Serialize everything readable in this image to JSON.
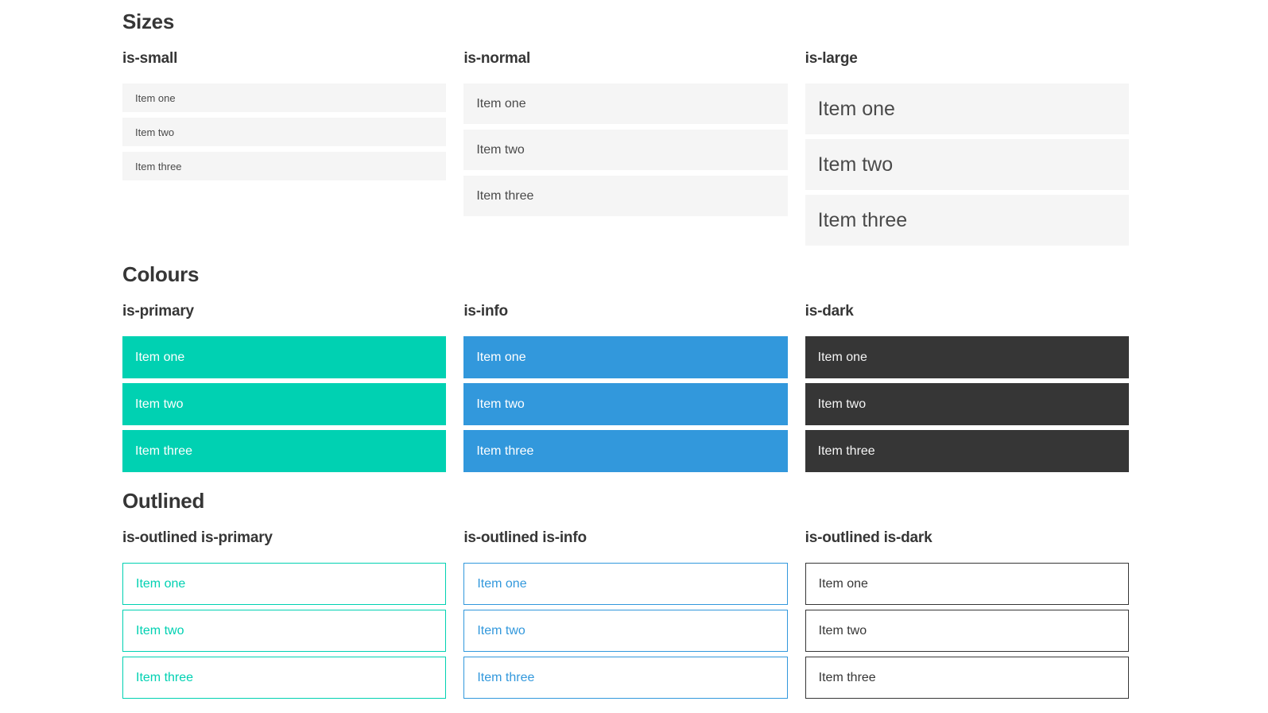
{
  "colors": {
    "page-bg": "#ffffff",
    "heading": "#363636",
    "item-bg": "#f5f5f5",
    "item-text": "#4a4a4a",
    "primary": "#00d1b2",
    "info": "#3298dc",
    "dark": "#363636",
    "dark-item-text": "#f5f5f5",
    "on-color-text": "#ffffff"
  },
  "sections": [
    {
      "title": "Sizes",
      "groups": [
        {
          "heading": "is-small",
          "items": [
            "Item one",
            "Item two",
            "Item three"
          ]
        },
        {
          "heading": "is-normal",
          "items": [
            "Item one",
            "Item two",
            "Item three"
          ]
        },
        {
          "heading": "is-large",
          "items": [
            "Item one",
            "Item two",
            "Item three"
          ]
        }
      ]
    },
    {
      "title": "Colours",
      "groups": [
        {
          "heading": "is-primary",
          "items": [
            "Item one",
            "Item two",
            "Item three"
          ]
        },
        {
          "heading": "is-info",
          "items": [
            "Item one",
            "Item two",
            "Item three"
          ]
        },
        {
          "heading": "is-dark",
          "items": [
            "Item one",
            "Item two",
            "Item three"
          ]
        }
      ]
    },
    {
      "title": "Outlined",
      "groups": [
        {
          "heading": "is-outlined is-primary",
          "items": [
            "Item one",
            "Item two",
            "Item three"
          ]
        },
        {
          "heading": "is-outlined is-info",
          "items": [
            "Item one",
            "Item two",
            "Item three"
          ]
        },
        {
          "heading": "is-outlined is-dark",
          "items": [
            "Item one",
            "Item two",
            "Item three"
          ]
        }
      ]
    }
  ]
}
